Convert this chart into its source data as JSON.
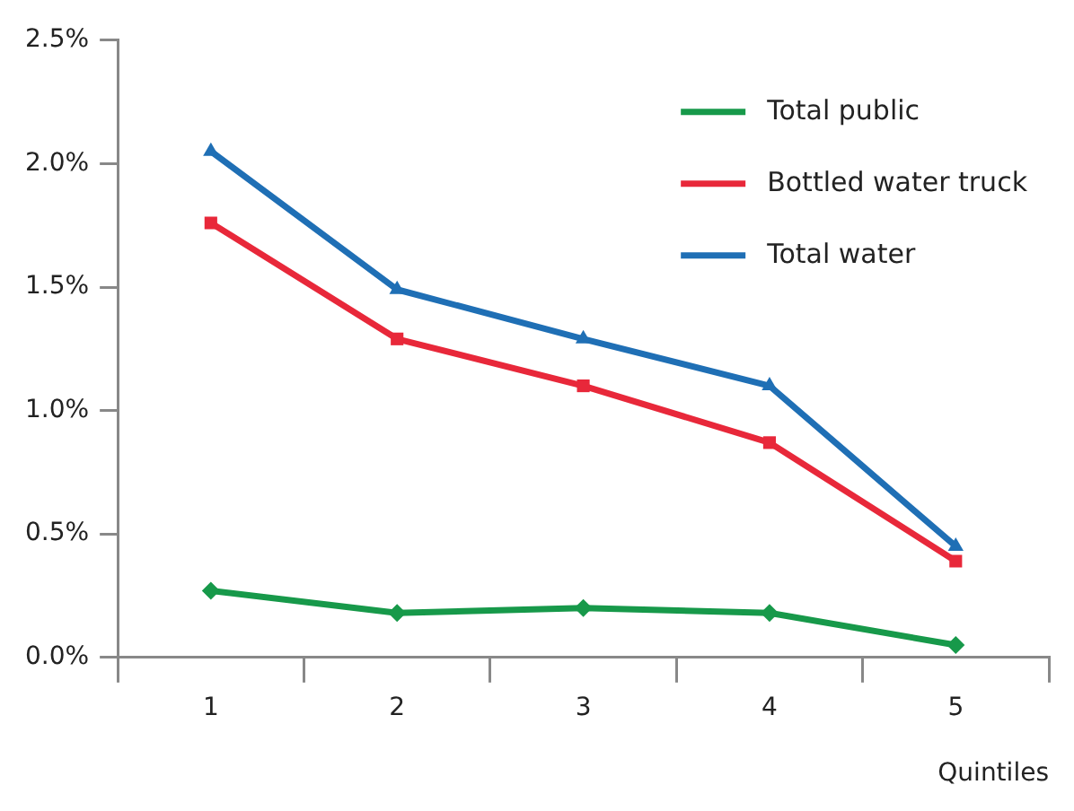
{
  "chart_data": {
    "type": "line",
    "xlabel": "Quintiles",
    "categories": [
      "1",
      "2",
      "3",
      "4",
      "5"
    ],
    "series": [
      {
        "name": "Total public",
        "color": "#17994a",
        "marker": "diamond",
        "values": [
          0.27,
          0.18,
          0.2,
          0.18,
          0.05
        ]
      },
      {
        "name": "Bottled water truck",
        "color": "#e8283a",
        "marker": "square",
        "values": [
          1.76,
          1.29,
          1.1,
          0.87,
          0.39
        ]
      },
      {
        "name": "Total water",
        "color": "#1f6fb5",
        "marker": "triangle",
        "values": [
          2.05,
          1.49,
          1.29,
          1.1,
          0.45
        ]
      }
    ],
    "ylim": [
      0,
      2.5
    ],
    "yticks": [
      {
        "value": 0,
        "label": "0.0%"
      },
      {
        "value": 0.5,
        "label": "0.5%"
      },
      {
        "value": 1,
        "label": "1.0%"
      },
      {
        "value": 1.5,
        "label": "1.5%"
      },
      {
        "value": 2,
        "label": "2.0%"
      },
      {
        "value": 2.5,
        "label": "2.5%"
      }
    ],
    "grid": false,
    "legend": "top right",
    "line_style": "solid"
  }
}
